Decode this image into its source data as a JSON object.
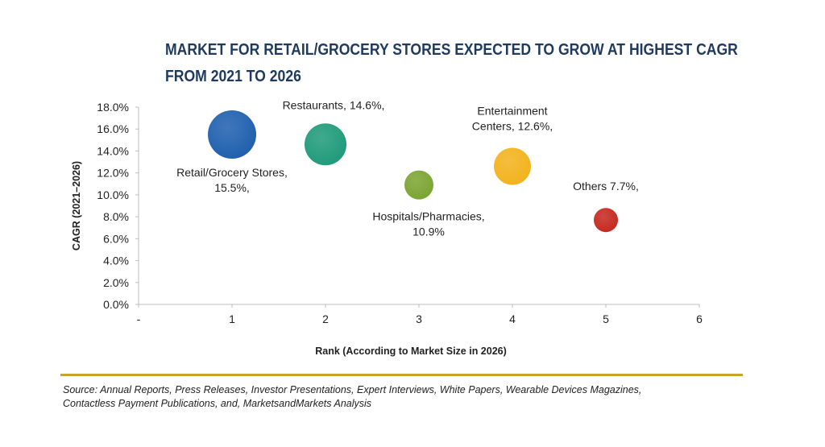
{
  "title": {
    "line1": "MARKET FOR RETAIL/GROCERY STORES EXPECTED TO GROW AT HIGHEST CAGR",
    "line2": "FROM 2021 TO 2026"
  },
  "chart_data": {
    "type": "scatter",
    "xlabel": "Rank (According to Market Size in 2026)",
    "ylabel": "CAGR (2021–2026)",
    "xlim": [
      0,
      6
    ],
    "ylim": [
      0,
      18
    ],
    "x_ticks": [
      "-",
      "1",
      "2",
      "3",
      "4",
      "5",
      "6"
    ],
    "y_ticks": [
      "0.0%",
      "2.0%",
      "4.0%",
      "6.0%",
      "8.0%",
      "10.0%",
      "12.0%",
      "14.0%",
      "16.0%",
      "18.0%"
    ],
    "grid": false,
    "points": [
      {
        "name": "Retail/Grocery Stores",
        "x": 1,
        "y": 15.5,
        "label": [
          "Retail/Grocery Stores,",
          "15.5%,"
        ],
        "color": "#1f5fae"
      },
      {
        "name": "Restaurants",
        "x": 2,
        "y": 14.6,
        "label": [
          "Restaurants, 14.6%,"
        ],
        "color": "#1f9a7a"
      },
      {
        "name": "Hospitals/Pharmacies",
        "x": 3,
        "y": 10.9,
        "label": [
          "Hospitals/Pharmacies,",
          "10.9%"
        ],
        "color": "#7ba431"
      },
      {
        "name": "Entertainment Centers",
        "x": 4,
        "y": 12.6,
        "label": [
          "Entertainment",
          "Centers, 12.6%,"
        ],
        "color": "#f2b21c"
      },
      {
        "name": "Others",
        "x": 5,
        "y": 7.7,
        "label": [
          "Others 7.7%,"
        ],
        "color": "#c4281f"
      }
    ]
  },
  "source": {
    "line1": "Source: Annual Reports, Press Releases, Investor Presentations, Expert Interviews, White Papers, Wearable Devices Magazines,",
    "line2": "Contactless Payment Publications, and, MarketsandMarkets Analysis"
  },
  "colors": {
    "title": "#1f3a5f",
    "rule": "#c9a227",
    "axis": "#bfbfbf"
  }
}
